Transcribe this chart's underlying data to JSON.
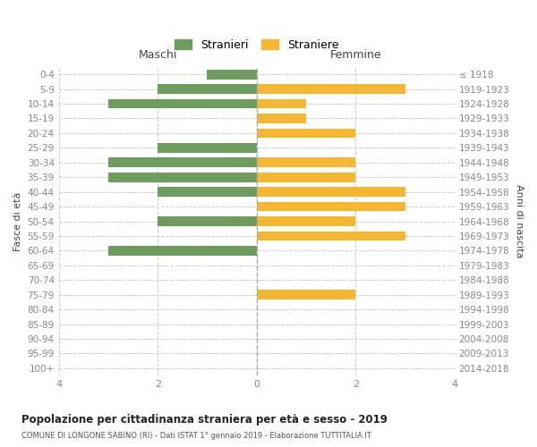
{
  "age_groups": [
    "0-4",
    "5-9",
    "10-14",
    "15-19",
    "20-24",
    "25-29",
    "30-34",
    "35-39",
    "40-44",
    "45-49",
    "50-54",
    "55-59",
    "60-64",
    "65-69",
    "70-74",
    "75-79",
    "80-84",
    "85-89",
    "90-94",
    "95-99",
    "100+"
  ],
  "birth_years": [
    "2014-2018",
    "2009-2013",
    "2004-2008",
    "1999-2003",
    "1994-1998",
    "1989-1993",
    "1984-1988",
    "1979-1983",
    "1974-1978",
    "1969-1973",
    "1964-1968",
    "1959-1963",
    "1954-1958",
    "1949-1953",
    "1944-1948",
    "1939-1943",
    "1934-1938",
    "1929-1933",
    "1924-1928",
    "1919-1923",
    "≤ 1918"
  ],
  "maschi": [
    1,
    2,
    3,
    0,
    0,
    2,
    3,
    3,
    2,
    0,
    2,
    0,
    3,
    0,
    0,
    0,
    0,
    0,
    0,
    0,
    0
  ],
  "femmine": [
    0,
    3,
    1,
    1,
    2,
    0,
    2,
    2,
    3,
    3,
    2,
    3,
    0,
    0,
    0,
    2,
    0,
    0,
    0,
    0,
    0
  ],
  "color_maschi": "#6e9b5e",
  "color_femmine": "#f5b731",
  "xlabel_left": "Maschi",
  "xlabel_right": "Femmine",
  "ylabel_left": "Fasce di età",
  "ylabel_right": "Anni di nascita",
  "title": "Popolazione per cittadinanza straniera per età e sesso - 2019",
  "subtitle": "COMUNE DI LONGONE SABINO (RI) - Dati ISTAT 1° gennaio 2019 - Elaborazione TUTTITALIA.IT",
  "legend_stranieri": "Stranieri",
  "legend_straniere": "Straniere",
  "xlim": 4,
  "background_color": "#ffffff",
  "grid_color": "#cccccc",
  "tick_color": "#888888"
}
